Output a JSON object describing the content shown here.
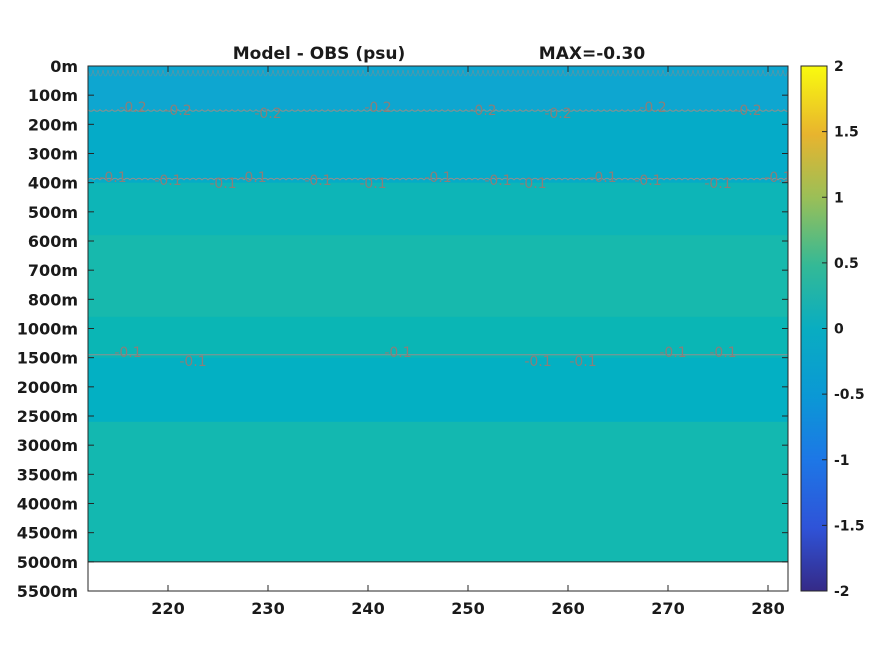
{
  "chart_data": {
    "type": "heatmap",
    "title": "Model - OBS (psu)",
    "subtitle": "MAX=-0.30",
    "xlim": [
      212,
      282
    ],
    "xticks": [
      220,
      230,
      240,
      250,
      260,
      270,
      280
    ],
    "ylevels": [
      "0m",
      "100m",
      "200m",
      "300m",
      "400m",
      "500m",
      "600m",
      "700m",
      "800m",
      "1000m",
      "1500m",
      "2000m",
      "2500m",
      "3000m",
      "3500m",
      "4000m",
      "4500m",
      "5000m",
      "5500m"
    ],
    "colorbar": {
      "min": -2,
      "max": 2,
      "ticks": [
        2,
        1.5,
        1,
        0.5,
        0,
        -0.5,
        -1,
        -1.5,
        -2
      ],
      "colormap": "parula"
    },
    "bands": [
      {
        "from_level": 0.0,
        "to_level": 1.5,
        "value": -0.25,
        "color": "#0ea6d0"
      },
      {
        "from_level": 1.5,
        "to_level": 4.0,
        "value": -0.15,
        "color": "#05abc8"
      },
      {
        "from_level": 4.0,
        "to_level": 5.8,
        "value": -0.05,
        "color": "#0db5b7"
      },
      {
        "from_level": 5.8,
        "to_level": 8.6,
        "value": 0.0,
        "color": "#17b9ad"
      },
      {
        "from_level": 8.6,
        "to_level": 10.0,
        "value": -0.05,
        "color": "#0ab6b5"
      },
      {
        "from_level": 10.0,
        "to_level": 12.2,
        "value": -0.1,
        "color": "#03b0c3"
      },
      {
        "from_level": 12.2,
        "to_level": 17.0,
        "value": -0.03,
        "color": "#13b8b0"
      }
    ],
    "contours": [
      {
        "label": "-0.2",
        "level": 1.5,
        "style": "wavy",
        "labels_x": [
          216.5,
          221.0,
          230.0,
          241.0,
          251.5,
          259.0,
          268.5,
          278.0
        ]
      },
      {
        "label": "-0.1",
        "level": 3.9,
        "style": "wavy",
        "labels_x": [
          214.5,
          220.0,
          225.5,
          228.5,
          235.0,
          240.5,
          247.0,
          253.0,
          256.5,
          263.5,
          268.0,
          275.0,
          281.0
        ]
      },
      {
        "label": "-0.1",
        "level": 9.9,
        "style": "flat",
        "labels_x": [
          216.0,
          222.5,
          243.0,
          261.5,
          270.5,
          257.0,
          275.5
        ]
      }
    ],
    "no_data_below_level": 17.0
  }
}
